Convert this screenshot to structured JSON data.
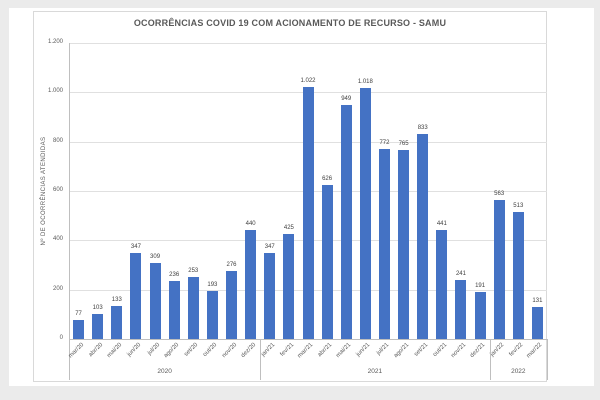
{
  "window": {
    "frame_color": "#ebebeb",
    "card_border_color": "#d9d9d9"
  },
  "chart_data": {
    "type": "bar",
    "title": "OCORRÊNCIAS COVID 19 COM ACIONAMENTO DE RECURSO - SAMU",
    "xlabel": "",
    "ylabel": "Nº DE OCORRÊNCIAS ATENDIDAS",
    "ylim": [
      0,
      1200
    ],
    "grid": true,
    "legend": "none",
    "bar_color": "#4472C4",
    "y_ticks": [
      "0",
      "200",
      "400",
      "600",
      "800",
      "1.000",
      "1.200"
    ],
    "categories": [
      "mar/20",
      "abr/20",
      "mai/20",
      "jun/20",
      "jul/20",
      "ago/20",
      "set/20",
      "out/20",
      "nov/20",
      "dez/20",
      "jan/21",
      "fev/21",
      "mar/21",
      "abr/21",
      "mai/21",
      "jun/21",
      "jul/21",
      "ago/21",
      "set/21",
      "out/21",
      "nov/21",
      "dez/21",
      "jan/22",
      "fev/22",
      "mar/22"
    ],
    "values": [
      77,
      103,
      133,
      347,
      309,
      236,
      253,
      193,
      276,
      440,
      347,
      425,
      1022,
      626,
      949,
      1018,
      772,
      765,
      833,
      441,
      241,
      191,
      563,
      513,
      131
    ],
    "data_labels": [
      "77",
      "103",
      "133",
      "347",
      "309",
      "236",
      "253",
      "193",
      "276",
      "440",
      "347",
      "425",
      "1.022",
      "626",
      "949",
      "1.018",
      "772",
      "765",
      "833",
      "441",
      "241",
      "191",
      "563",
      "513",
      "131"
    ],
    "groups": [
      {
        "label": "2020",
        "span": 10
      },
      {
        "label": "2021",
        "span": 12
      },
      {
        "label": "2022",
        "span": 3
      }
    ]
  }
}
